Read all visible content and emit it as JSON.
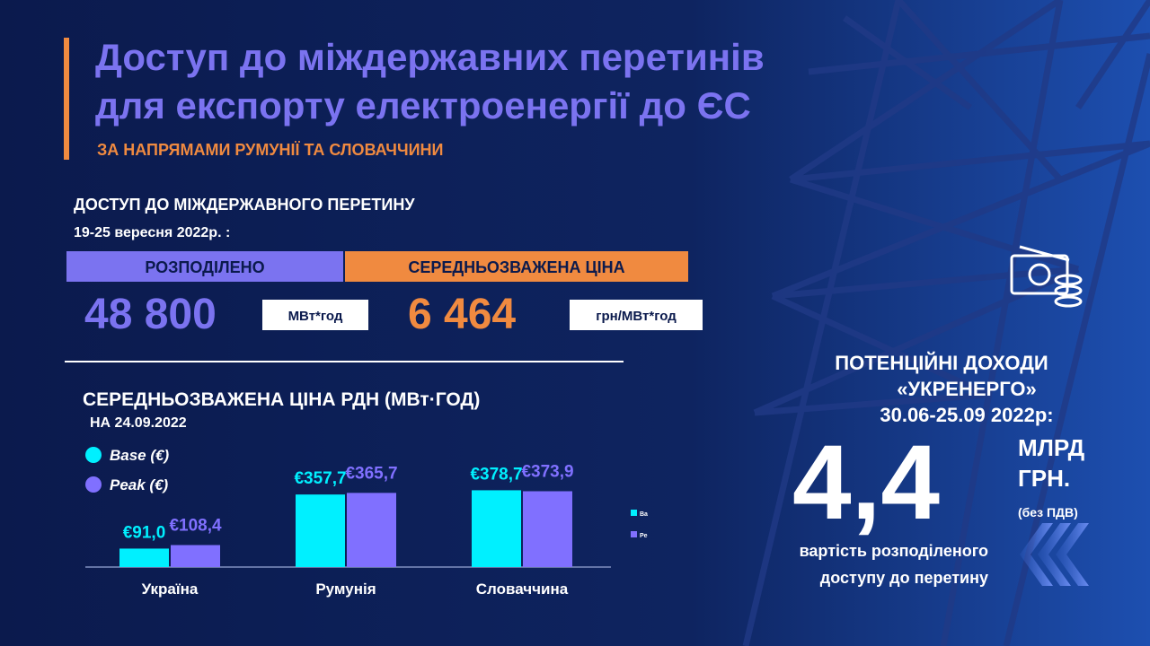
{
  "header": {
    "title_lines": [
      "Доступ до міждержавних перетинів",
      "для експорту електроенергії до ЄС"
    ],
    "subtitle": "ЗА НАПРЯМАМИ РУМУНІЇ ТА СЛОВАЧЧИНИ"
  },
  "access": {
    "heading": "ДОСТУП ДО МІЖДЕРЖАВНОГО ПЕРЕТИНУ",
    "period": "19-25 вересня 2022р. :",
    "allocated": {
      "label": "РОЗПОДІЛЕНО",
      "value": "48 800",
      "unit": "МВт*год"
    },
    "price": {
      "label": "СЕРЕДНЬОЗВАЖЕНА  ЦІНА",
      "value": "6 464",
      "unit": "грн/МВт*год"
    }
  },
  "income": {
    "lines": [
      "ПОТЕНЦІЙНІ ДОХОДИ",
      "«УКРЕНЕРГО»",
      "30.06-25.09 2022р:"
    ],
    "value": "4,4",
    "unit_lines": [
      "МЛРД",
      "ГРН."
    ],
    "note": "(без ПДВ)",
    "caption_lines": [
      "вартість розподіленого",
      "доступу до перетину"
    ]
  },
  "chart_data": {
    "type": "bar",
    "title": "СЕРЕДНЬОЗВАЖЕНА  ЦІНА РДН (МВт·ГОД)",
    "subtitle": "НА 24.09.2022",
    "categories": [
      "Україна",
      "Румунія",
      "Словаччина"
    ],
    "series": [
      {
        "name": "Base (€)",
        "color": "#00f0ff",
        "values": [
          91.0,
          357.7,
          378.7
        ],
        "value_labels": [
          "€91,0",
          "€357,7",
          "€378,7"
        ]
      },
      {
        "name": "Peak (€)",
        "color": "#8070ff",
        "values": [
          108.4,
          365.7,
          373.9
        ],
        "value_labels": [
          "€108,4",
          "€365,7",
          "€373,9"
        ]
      }
    ],
    "legend_stub": [
      "Ba",
      "Pe"
    ]
  }
}
